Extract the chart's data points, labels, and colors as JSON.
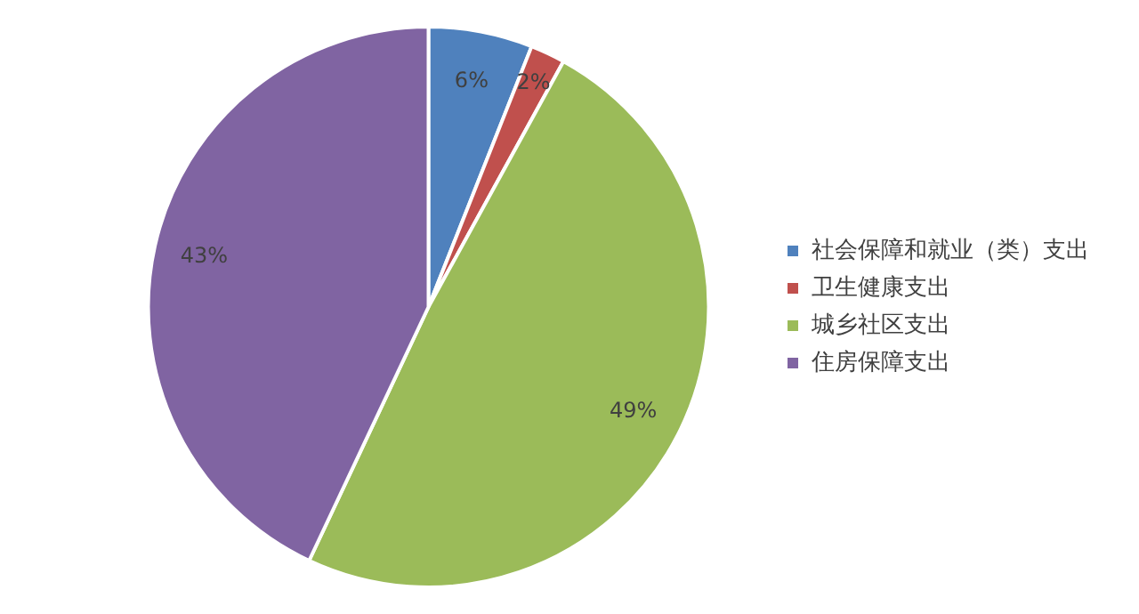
{
  "chart_data": {
    "type": "pie",
    "categories": [
      "社会保障和就业（类）支出",
      "卫生健康支出",
      "城乡社区支出",
      "住房保障支出"
    ],
    "values": [
      6,
      2,
      49,
      43
    ],
    "colors": [
      "#4f81bd",
      "#c0504d",
      "#9bbb59",
      "#8064a2"
    ],
    "value_labels": [
      "6%",
      "2%",
      "49%",
      "43%"
    ],
    "legend": "right"
  }
}
